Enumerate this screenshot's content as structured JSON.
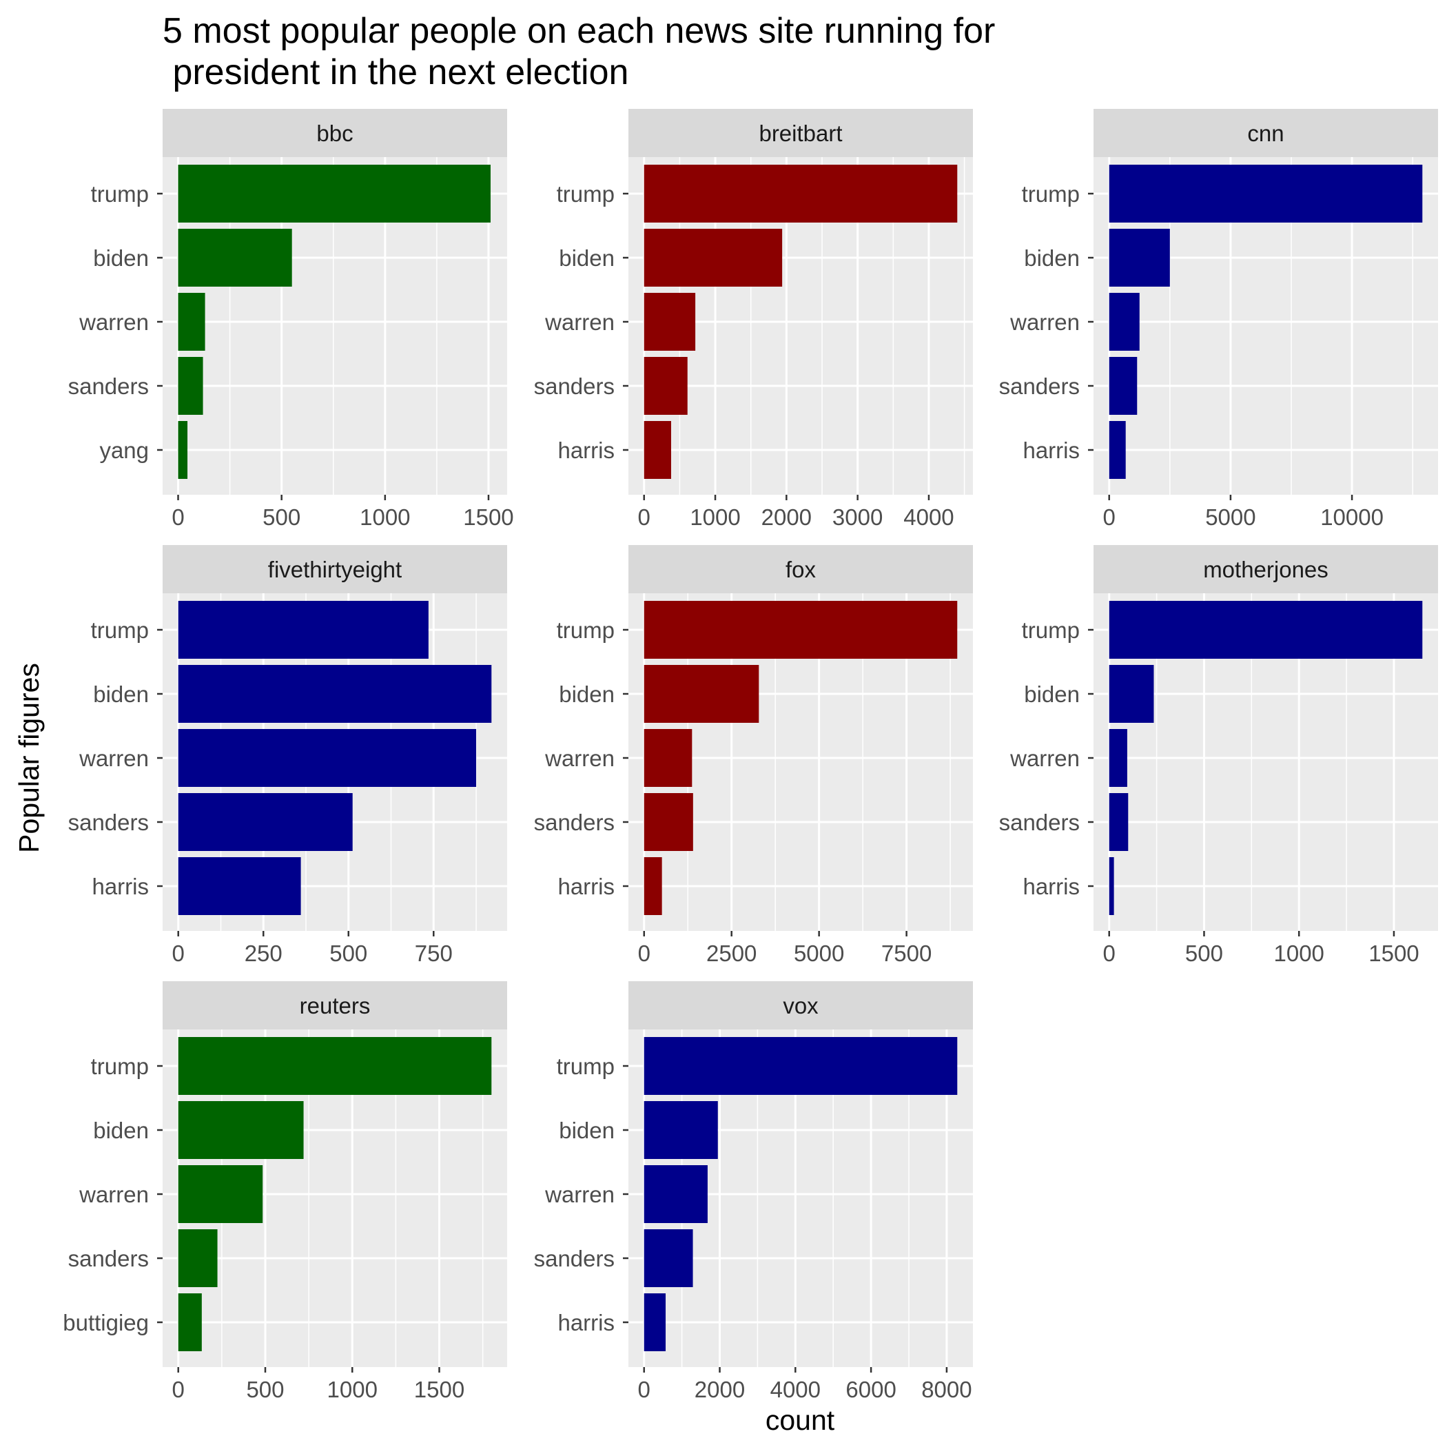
{
  "chart_data": {
    "type": "bar",
    "orientation": "horizontal",
    "title_lines": [
      "5 most popular people on each news site running for",
      " president in the next election"
    ],
    "xlabel": "count",
    "ylabel": "Popular figures",
    "grid": true,
    "legend": "none",
    "colors": {
      "green": "#006400",
      "darkred": "#8b0000",
      "navy": "#00008b",
      "panel_bg": "#ebebeb",
      "strip_bg": "#d9d9d9",
      "grid": "#ffffff"
    },
    "panels": [
      {
        "name": "bbc",
        "color": "#006400",
        "categories": [
          "trump",
          "biden",
          "warren",
          "sanders",
          "yang"
        ],
        "values": [
          1510,
          550,
          130,
          120,
          45
        ],
        "xlim": [
          -75,
          1590
        ],
        "ticks": [
          0,
          500,
          1000,
          1500
        ],
        "tick_labels": [
          "0",
          "500",
          "1000",
          "1500"
        ]
      },
      {
        "name": "breitbart",
        "color": "#8b0000",
        "categories": [
          "trump",
          "biden",
          "warren",
          "sanders",
          "harris"
        ],
        "values": [
          4400,
          1940,
          720,
          610,
          380
        ],
        "xlim": [
          -220,
          4620
        ],
        "ticks": [
          0,
          1000,
          2000,
          3000,
          4000
        ],
        "tick_labels": [
          "0",
          "1000",
          "2000",
          "3000",
          "4000"
        ]
      },
      {
        "name": "cnn",
        "color": "#00008b",
        "categories": [
          "trump",
          "biden",
          "warren",
          "sanders",
          "harris"
        ],
        "values": [
          12900,
          2500,
          1250,
          1150,
          680
        ],
        "xlim": [
          -645,
          13545
        ],
        "ticks": [
          0,
          5000,
          10000
        ],
        "tick_labels": [
          "0",
          "5000",
          "10000"
        ]
      },
      {
        "name": "fivethirtyeight",
        "color": "#00008b",
        "categories": [
          "trump",
          "biden",
          "warren",
          "sanders",
          "harris"
        ],
        "values": [
          735,
          920,
          875,
          512,
          360
        ],
        "xlim": [
          -46,
          966
        ],
        "ticks": [
          0,
          250,
          500,
          750
        ],
        "tick_labels": [
          "0",
          "250",
          "500",
          "750"
        ]
      },
      {
        "name": "fox",
        "color": "#8b0000",
        "categories": [
          "trump",
          "biden",
          "warren",
          "sanders",
          "harris"
        ],
        "values": [
          8950,
          3280,
          1370,
          1400,
          510
        ],
        "xlim": [
          -448,
          9398
        ],
        "ticks": [
          0,
          2500,
          5000,
          7500
        ],
        "tick_labels": [
          "0",
          "2500",
          "5000",
          "7500"
        ]
      },
      {
        "name": "motherjones",
        "color": "#00008b",
        "categories": [
          "trump",
          "biden",
          "warren",
          "sanders",
          "harris"
        ],
        "values": [
          1650,
          235,
          95,
          100,
          25
        ],
        "xlim": [
          -82.5,
          1732.5
        ],
        "ticks": [
          0,
          500,
          1000,
          1500
        ],
        "tick_labels": [
          "0",
          "500",
          "1000",
          "1500"
        ]
      },
      {
        "name": "reuters",
        "color": "#006400",
        "categories": [
          "trump",
          "biden",
          "warren",
          "sanders",
          "buttigieg"
        ],
        "values": [
          1800,
          720,
          485,
          225,
          135
        ],
        "xlim": [
          -90,
          1890
        ],
        "ticks": [
          0,
          500,
          1000,
          1500
        ],
        "tick_labels": [
          "0",
          "500",
          "1000",
          "1500"
        ]
      },
      {
        "name": "vox",
        "color": "#00008b",
        "categories": [
          "trump",
          "biden",
          "warren",
          "sanders",
          "harris"
        ],
        "values": [
          8280,
          1950,
          1680,
          1290,
          570
        ],
        "xlim": [
          -414,
          8694
        ],
        "ticks": [
          0,
          2000,
          4000,
          6000,
          8000
        ],
        "tick_labels": [
          "0",
          "2000",
          "4000",
          "6000",
          "8000"
        ]
      }
    ]
  }
}
